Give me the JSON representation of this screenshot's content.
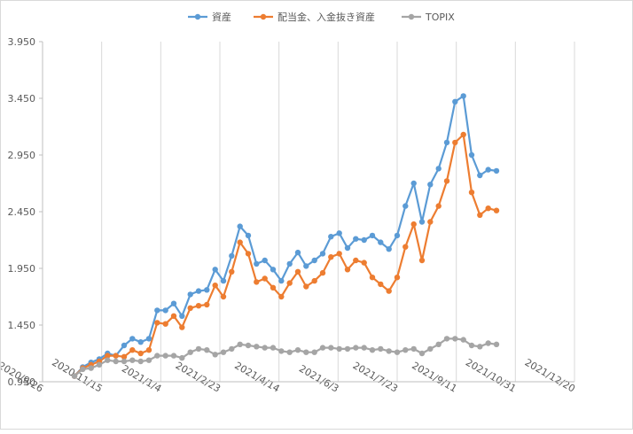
{
  "chart_data": {
    "type": "line",
    "title": "",
    "xlabel": "",
    "ylabel": "",
    "ylim": [
      0.95,
      3.95
    ],
    "yticks": [
      "0.950",
      "1.450",
      "1.950",
      "2.450",
      "2.950",
      "3.450",
      "3.950"
    ],
    "xlim": [
      "2020-09-26",
      "2021-12-20"
    ],
    "xticks": [
      "2020/9/26",
      "2020/11/15",
      "2021/1/4",
      "2021/2/23",
      "2021/4/14",
      "2021/6/3",
      "2021/7/23",
      "2021/9/11",
      "2021/10/31",
      "2021/12/20"
    ],
    "grid": "vertical",
    "legend": "top",
    "dates": [
      "2020-10-23",
      "2020-10-30",
      "2020-11-06",
      "2020-11-13",
      "2020-11-20",
      "2020-11-27",
      "2020-12-04",
      "2020-12-11",
      "2020-12-18",
      "2020-12-25",
      "2021-01-01",
      "2021-01-08",
      "2021-01-15",
      "2021-01-22",
      "2021-01-29",
      "2021-02-05",
      "2021-02-12",
      "2021-02-19",
      "2021-02-26",
      "2021-03-05",
      "2021-03-12",
      "2021-03-19",
      "2021-03-26",
      "2021-04-02",
      "2021-04-09",
      "2021-04-16",
      "2021-04-23",
      "2021-04-30",
      "2021-05-07",
      "2021-05-14",
      "2021-05-21",
      "2021-05-28",
      "2021-06-04",
      "2021-06-11",
      "2021-06-18",
      "2021-06-25",
      "2021-07-02",
      "2021-07-09",
      "2021-07-16",
      "2021-07-23",
      "2021-07-30",
      "2021-08-06",
      "2021-08-13",
      "2021-08-20",
      "2021-08-27",
      "2021-09-03",
      "2021-09-10",
      "2021-09-17",
      "2021-09-24",
      "2021-10-01",
      "2021-10-08",
      "2021-10-15"
    ],
    "series": [
      {
        "name": "資産",
        "color": "#5b9bd5",
        "values": [
          1.0,
          1.08,
          1.12,
          1.15,
          1.2,
          1.18,
          1.27,
          1.33,
          1.3,
          1.33,
          1.58,
          1.58,
          1.64,
          1.53,
          1.72,
          1.75,
          1.76,
          1.94,
          1.84,
          2.06,
          2.32,
          2.24,
          1.99,
          2.02,
          1.94,
          1.84,
          1.99,
          2.09,
          1.97,
          2.02,
          2.08,
          2.23,
          2.26,
          2.13,
          2.21,
          2.2,
          2.24,
          2.18,
          2.12,
          2.24,
          2.5,
          2.7,
          2.36,
          2.69,
          2.83,
          3.06,
          3.42,
          3.47,
          2.95,
          2.77,
          2.82,
          2.81
        ]
      },
      {
        "name": "配当金、入金抜き資産",
        "color": "#ed7d31",
        "values": [
          1.0,
          1.07,
          1.1,
          1.13,
          1.18,
          1.18,
          1.17,
          1.23,
          1.2,
          1.23,
          1.47,
          1.46,
          1.53,
          1.43,
          1.6,
          1.62,
          1.63,
          1.8,
          1.7,
          1.92,
          2.18,
          2.08,
          1.83,
          1.86,
          1.78,
          1.7,
          1.82,
          1.92,
          1.79,
          1.84,
          1.91,
          2.05,
          2.08,
          1.94,
          2.02,
          2.0,
          1.87,
          1.81,
          1.75,
          1.87,
          2.14,
          2.34,
          2.02,
          2.36,
          2.5,
          2.72,
          3.06,
          3.13,
          2.62,
          2.42,
          2.48,
          2.46
        ]
      },
      {
        "name": "TOPIX",
        "color": "#a5a5a5",
        "values": [
          1.0,
          1.06,
          1.07,
          1.1,
          1.14,
          1.13,
          1.13,
          1.14,
          1.13,
          1.14,
          1.18,
          1.18,
          1.18,
          1.16,
          1.21,
          1.24,
          1.23,
          1.19,
          1.21,
          1.24,
          1.28,
          1.27,
          1.26,
          1.25,
          1.25,
          1.22,
          1.21,
          1.23,
          1.21,
          1.21,
          1.25,
          1.25,
          1.24,
          1.24,
          1.25,
          1.25,
          1.23,
          1.24,
          1.22,
          1.21,
          1.23,
          1.24,
          1.2,
          1.24,
          1.28,
          1.33,
          1.33,
          1.32,
          1.27,
          1.26,
          1.29,
          1.28
        ]
      }
    ]
  }
}
